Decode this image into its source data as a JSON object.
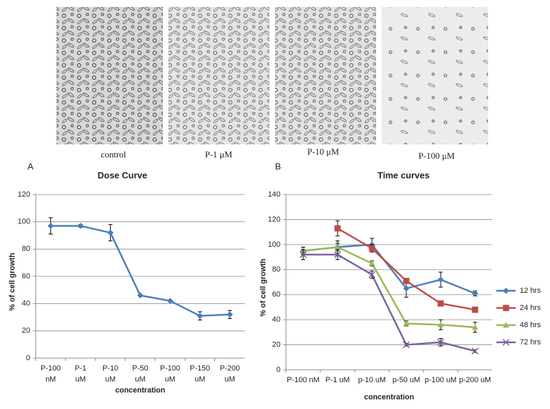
{
  "images": [
    {
      "label": "control"
    },
    {
      "label": "P-1 μM"
    },
    {
      "label": "P-10 μM"
    },
    {
      "label": "P-100 μM"
    }
  ],
  "chart_data": [
    {
      "type": "line",
      "label": "A",
      "title": "Dose  Curve",
      "x_label": "concentration",
      "y_label": "%  of  cell  growth",
      "categories": [
        "P-100 nM",
        "P-1 uM",
        "P-10 uM",
        "P-50 uM",
        "P-100 uM",
        "P-150 uM",
        "P-200 uM"
      ],
      "series": [
        {
          "name": null,
          "color": "#4a7ebb",
          "marker": "diamond",
          "values": [
            97,
            97,
            92,
            46,
            42,
            31,
            32
          ],
          "errors": [
            6,
            1,
            6,
            0,
            0,
            3,
            3
          ]
        }
      ],
      "ylim": [
        0,
        120
      ],
      "yticks": [
        0,
        20,
        40,
        60,
        80,
        100,
        120
      ],
      "grid": true
    },
    {
      "type": "line",
      "label": "B",
      "title": "Time curves",
      "x_label": "concentration",
      "y_label": "%  of  cell  growth",
      "categories": [
        "P-100 nM",
        "P-1 uM",
        "p-10 uM",
        "p-50 uM",
        "p-100 uM",
        "p-200 uM"
      ],
      "series": [
        {
          "name": "12 hrs",
          "color": "#4a7ebb",
          "marker": "diamond",
          "values": [
            95,
            98,
            100,
            65,
            72,
            61
          ],
          "errors": [
            3,
            5,
            5,
            7,
            6,
            2
          ]
        },
        {
          "name": "24 hrs",
          "color": "#be4b48",
          "marker": "square",
          "values": [
            null,
            113,
            97,
            71,
            53,
            48
          ],
          "errors": [
            null,
            6,
            3,
            2,
            1,
            2
          ]
        },
        {
          "name": "48 hrs",
          "color": "#98b954",
          "marker": "triangle",
          "values": [
            95,
            98,
            85,
            37,
            36,
            34
          ],
          "errors": [
            3,
            3,
            2,
            2,
            4,
            4
          ]
        },
        {
          "name": "72 hrs",
          "color": "#7d60a0",
          "marker": "x",
          "values": [
            92,
            92,
            76,
            20,
            22,
            15
          ],
          "errors": [
            4,
            4,
            3,
            1,
            3,
            1
          ]
        }
      ],
      "ylim": [
        0,
        140
      ],
      "yticks": [
        0,
        20,
        40,
        60,
        80,
        100,
        120,
        140
      ],
      "grid": true,
      "legend": "right"
    }
  ]
}
